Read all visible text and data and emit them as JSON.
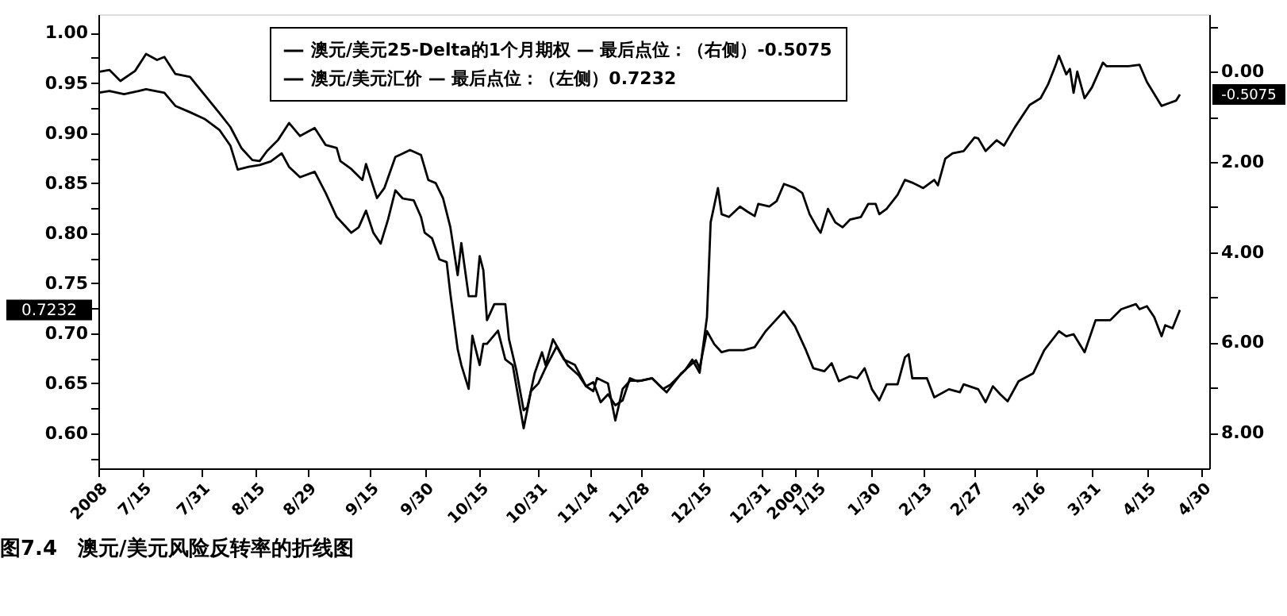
{
  "chart_data": {
    "type": "line",
    "title": "图7.4　澳元/美元风险反转率的折线图",
    "xlim": [
      "2008-07-03",
      "2009-05-02"
    ],
    "xticks": [
      {
        "value": "2008-07-03",
        "label": "2008"
      },
      {
        "value": "2008-07-15",
        "label": "7/15"
      },
      {
        "value": "2008-07-31",
        "label": "7/31"
      },
      {
        "value": "2008-08-15",
        "label": "8/15"
      },
      {
        "value": "2008-08-29",
        "label": "8/29"
      },
      {
        "value": "2008-09-15",
        "label": "9/15"
      },
      {
        "value": "2008-09-30",
        "label": "9/30"
      },
      {
        "value": "2008-10-15",
        "label": "10/15"
      },
      {
        "value": "2008-10-31",
        "label": "10/31"
      },
      {
        "value": "2008-11-14",
        "label": "11/14"
      },
      {
        "value": "2008-11-28",
        "label": "11/28"
      },
      {
        "value": "2008-12-15",
        "label": "12/15"
      },
      {
        "value": "2008-12-31",
        "label": "12/31"
      },
      {
        "value": "2009-01-09",
        "label": "2009"
      },
      {
        "value": "2009-01-15",
        "label": "1/15"
      },
      {
        "value": "2009-01-30",
        "label": "1/30"
      },
      {
        "value": "2009-02-13",
        "label": "2/13"
      },
      {
        "value": "2009-02-27",
        "label": "2/27"
      },
      {
        "value": "2009-03-16",
        "label": "3/16"
      },
      {
        "value": "2009-03-31",
        "label": "3/31"
      },
      {
        "value": "2009-04-15",
        "label": "4/15"
      },
      {
        "value": "2009-04-30",
        "label": "4/30"
      }
    ],
    "ylim": [
      0.565,
      1.0186
    ],
    "yticks": [
      {
        "value": 0.6,
        "label": "0.60"
      },
      {
        "value": 0.65,
        "label": "0.65"
      },
      {
        "value": 0.7,
        "label": "0.70"
      },
      {
        "value": 0.75,
        "label": "0.75"
      },
      {
        "value": 0.8,
        "label": "0.80"
      },
      {
        "value": 0.85,
        "label": "0.85"
      },
      {
        "value": 0.9,
        "label": "0.90"
      },
      {
        "value": 0.95,
        "label": "0.95"
      },
      {
        "value": 1,
        "label": "1.00"
      },
      {
        "value": 0.575,
        "label": null
      },
      {
        "value": 0.625,
        "label": null
      },
      {
        "value": 0.675,
        "label": null
      },
      {
        "value": 0.725,
        "label": null
      },
      {
        "value": 0.775,
        "label": null
      },
      {
        "value": 0.825,
        "label": null
      },
      {
        "value": 0.875,
        "label": null
      },
      {
        "value": 0.925,
        "label": null
      },
      {
        "value": 0.975,
        "label": null
      }
    ],
    "y2lim": [
      -8.79,
      1.27
    ],
    "y2ticks": [
      {
        "value": 0,
        "label": "0.00"
      },
      {
        "value": -2,
        "label": "2.00"
      },
      {
        "value": -4,
        "label": "4.00"
      },
      {
        "value": -6,
        "label": "6.00"
      },
      {
        "value": -8,
        "label": "8.00"
      },
      {
        "value": 1,
        "label": null
      },
      {
        "value": -1,
        "label": null
      },
      {
        "value": -3,
        "label": null
      },
      {
        "value": -5,
        "label": null
      },
      {
        "value": -7,
        "label": null
      }
    ],
    "grid": false,
    "legend": "top",
    "marker": "none",
    "line_style": "solid",
    "annotations": [
      "-0.5075",
      "0.7232"
    ],
    "series": [
      {
        "name": "澳元/美元25-Delta的1个月期权 — 最后点位：（右侧）-0.5075",
        "color": "#000000",
        "axis": "y2",
        "x": [
          "2008-07-03",
          "2008-07-06",
          "2008-07-10",
          "2008-07-14",
          "2008-07-16",
          "2008-07-21",
          "2008-07-24",
          "2008-07-28",
          "2008-08-01",
          "2008-08-05",
          "2008-08-08",
          "2008-08-10",
          "2008-08-13",
          "2008-08-16",
          "2008-08-19",
          "2008-08-22",
          "2008-08-24",
          "2008-08-27",
          "2008-08-31",
          "2008-09-03",
          "2008-09-06",
          "2008-09-10",
          "2008-09-12",
          "2008-09-14",
          "2008-09-16",
          "2008-09-18",
          "2008-09-20",
          "2008-09-22",
          "2008-09-24",
          "2008-09-27",
          "2008-09-29",
          "2008-09-30",
          "2008-10-02",
          "2008-10-04",
          "2008-10-06",
          "2008-10-07",
          "2008-10-09",
          "2008-10-10",
          "2008-10-12",
          "2008-10-13",
          "2008-10-15",
          "2008-10-16",
          "2008-10-17",
          "2008-10-20",
          "2008-10-22",
          "2008-10-24",
          "2008-10-27",
          "2008-10-29",
          "2008-10-31",
          "2008-11-02",
          "2008-11-05",
          "2008-11-07",
          "2008-11-10",
          "2008-11-13",
          "2008-11-15",
          "2008-11-16",
          "2008-11-19",
          "2008-11-21",
          "2008-11-23",
          "2008-11-25",
          "2008-11-28",
          "2008-12-01",
          "2008-12-04",
          "2008-12-06",
          "2008-12-10",
          "2008-12-12",
          "2008-12-14",
          "2008-12-16",
          "2008-12-17",
          "2008-12-19",
          "2008-12-20",
          "2008-12-22",
          "2008-12-25",
          "2008-12-27",
          "2008-12-29",
          "2008-12-30",
          "2009-01-02",
          "2009-01-04",
          "2009-01-06",
          "2009-01-09",
          "2009-01-11",
          "2009-01-13",
          "2009-01-15",
          "2009-01-16",
          "2009-01-18",
          "2009-01-20",
          "2009-01-22",
          "2009-01-24",
          "2009-01-27",
          "2009-01-29",
          "2009-01-31",
          "2009-02-01",
          "2009-02-03",
          "2009-02-06",
          "2009-02-08",
          "2009-02-10",
          "2009-02-13",
          "2009-02-16",
          "2009-02-17",
          "2009-02-19",
          "2009-02-21",
          "2009-02-24",
          "2009-02-27",
          "2009-02-28",
          "2009-03-02",
          "2009-03-05",
          "2009-03-07",
          "2009-03-10",
          "2009-03-14",
          "2009-03-17",
          "2009-03-19",
          "2009-03-21",
          "2009-03-22",
          "2009-03-24",
          "2009-03-25",
          "2009-03-26",
          "2009-03-27",
          "2009-03-29",
          "2009-03-31",
          "2009-04-03",
          "2009-04-04",
          "2009-04-07",
          "2009-04-10",
          "2009-04-13",
          "2009-04-15",
          "2009-04-19",
          "2009-04-21",
          "2009-04-23",
          "2009-04-24"
        ],
        "values": [
          -0.47,
          -0.43,
          -0.5,
          -0.43,
          -0.39,
          -0.47,
          -0.76,
          -0.9,
          -1.05,
          -1.29,
          -1.64,
          -2.17,
          -2.11,
          -2.07,
          -1.99,
          -1.81,
          -2.11,
          -2.34,
          -2.22,
          -2.69,
          -3.22,
          -3.57,
          -3.45,
          -3.08,
          -3.57,
          -3.81,
          -3.28,
          -2.63,
          -2.81,
          -2.85,
          -3.22,
          -3.57,
          -3.69,
          -4.16,
          -4.22,
          -4.92,
          -6.15,
          -6.5,
          -7.03,
          -5.85,
          -6.5,
          -6.03,
          -6.03,
          -5.74,
          -6.38,
          -6.5,
          -7.9,
          -7.08,
          -6.91,
          -6.56,
          -6.09,
          -6.38,
          -6.5,
          -6.97,
          -7.08,
          -6.79,
          -6.91,
          -7.73,
          -7.03,
          -6.85,
          -6.85,
          -6.79,
          -7.03,
          -6.94,
          -6.62,
          -6.38,
          -6.67,
          -5.44,
          -3.34,
          -2.58,
          -3.16,
          -3.22,
          -2.99,
          -3.1,
          -3.2,
          -2.93,
          -2.99,
          -2.87,
          -2.49,
          -2.58,
          -2.69,
          -3.16,
          -3.45,
          -3.57,
          -3.04,
          -3.34,
          -3.45,
          -3.28,
          -3.22,
          -2.93,
          -2.93,
          -3.16,
          -3.04,
          -2.73,
          -2.4,
          -2.46,
          -2.58,
          -2.4,
          -2.52,
          -1.93,
          -1.81,
          -1.76,
          -1.46,
          -1.48,
          -1.76,
          -1.52,
          -1.64,
          -1.23,
          -0.74,
          -0.59,
          -0.29,
          0.12,
          0.35,
          -0.06,
          0.06,
          -0.47,
          0.0,
          -0.59,
          -0.35,
          0.2,
          0.12,
          0.12,
          0.12,
          0.15,
          -0.23,
          -0.76,
          -0.7,
          -0.64,
          -0.5075
        ]
      },
      {
        "name": "澳元/美元汇价 — 最后点位：（左侧）0.7232",
        "color": "#000000",
        "x": [
          "2008-07-03",
          "2008-07-06",
          "2008-07-09",
          "2008-07-13",
          "2008-07-16",
          "2008-07-19",
          "2008-07-21",
          "2008-07-24",
          "2008-07-28",
          "2008-08-01",
          "2008-08-05",
          "2008-08-08",
          "2008-08-11",
          "2008-08-14",
          "2008-08-16",
          "2008-08-18",
          "2008-08-21",
          "2008-08-24",
          "2008-08-27",
          "2008-08-31",
          "2008-09-03",
          "2008-09-06",
          "2008-09-07",
          "2008-09-10",
          "2008-09-13",
          "2008-09-14",
          "2008-09-17",
          "2008-09-19",
          "2008-09-22",
          "2008-09-26",
          "2008-09-29",
          "2008-10-01",
          "2008-10-03",
          "2008-10-05",
          "2008-10-07",
          "2008-10-09",
          "2008-10-10",
          "2008-10-12",
          "2008-10-14",
          "2008-10-15",
          "2008-10-16",
          "2008-10-17",
          "2008-10-19",
          "2008-10-22",
          "2008-10-23",
          "2008-10-25",
          "2008-10-27",
          "2008-10-28",
          "2008-10-30",
          "2008-11-01",
          "2008-11-02",
          "2008-11-04",
          "2008-11-06",
          "2008-11-08",
          "2008-11-11",
          "2008-11-13",
          "2008-11-15",
          "2008-11-17",
          "2008-11-19",
          "2008-11-21",
          "2008-11-23",
          "2008-11-25",
          "2008-11-27",
          "2008-12-01",
          "2008-12-05",
          "2008-12-09",
          "2008-12-13",
          "2008-12-14",
          "2008-12-16",
          "2008-12-18",
          "2008-12-20",
          "2008-12-22",
          "2008-12-26",
          "2008-12-29",
          "2009-01-01",
          "2009-01-03",
          "2009-01-06",
          "2009-01-09",
          "2009-01-12",
          "2009-01-14",
          "2009-01-17",
          "2009-01-19",
          "2009-01-21",
          "2009-01-24",
          "2009-01-26",
          "2009-01-28",
          "2009-01-30",
          "2009-02-01",
          "2009-02-03",
          "2009-02-06",
          "2009-02-08",
          "2009-02-09",
          "2009-02-10",
          "2009-02-14",
          "2009-02-16",
          "2009-02-20",
          "2009-02-23",
          "2009-02-24",
          "2009-02-28",
          "2009-03-02",
          "2009-03-04",
          "2009-03-06",
          "2009-03-08",
          "2009-03-11",
          "2009-03-15",
          "2009-03-18",
          "2009-03-22",
          "2009-03-24",
          "2009-03-26",
          "2009-03-29",
          "2009-04-01",
          "2009-04-05",
          "2009-04-08",
          "2009-04-12",
          "2009-04-13",
          "2009-04-15",
          "2009-04-17",
          "2009-04-19",
          "2009-04-20",
          "2009-04-22",
          "2009-04-24"
        ],
        "values": [
          0.961,
          0.963,
          0.952,
          0.962,
          0.979,
          0.973,
          0.976,
          0.959,
          0.956,
          0.938,
          0.92,
          0.906,
          0.885,
          0.873,
          0.872,
          0.882,
          0.893,
          0.91,
          0.897,
          0.905,
          0.888,
          0.885,
          0.872,
          0.864,
          0.853,
          0.869,
          0.835,
          0.845,
          0.876,
          0.883,
          0.878,
          0.853,
          0.85,
          0.835,
          0.806,
          0.758,
          0.79,
          0.737,
          0.737,
          0.777,
          0.763,
          0.713,
          0.729,
          0.729,
          0.694,
          0.663,
          0.623,
          0.626,
          0.66,
          0.681,
          0.668,
          0.694,
          0.681,
          0.668,
          0.658,
          0.647,
          0.651,
          0.631,
          0.639,
          0.628,
          0.633,
          0.655,
          0.652,
          0.655,
          0.641,
          0.66,
          0.673,
          0.665,
          0.702,
          0.689,
          0.681,
          0.683,
          0.683,
          0.686,
          0.702,
          0.71,
          0.722,
          0.707,
          0.683,
          0.665,
          0.662,
          0.67,
          0.652,
          0.657,
          0.655,
          0.665,
          0.644,
          0.633,
          0.649,
          0.649,
          0.676,
          0.679,
          0.655,
          0.655,
          0.636,
          0.644,
          0.641,
          0.649,
          0.644,
          0.631,
          0.647,
          0.639,
          0.632,
          0.652,
          0.66,
          0.683,
          0.702,
          0.697,
          0.699,
          0.681,
          0.713,
          0.713,
          0.724,
          0.729,
          0.724,
          0.727,
          0.716,
          0.697,
          0.708,
          0.705,
          0.7232
        ]
      }
    ]
  }
}
